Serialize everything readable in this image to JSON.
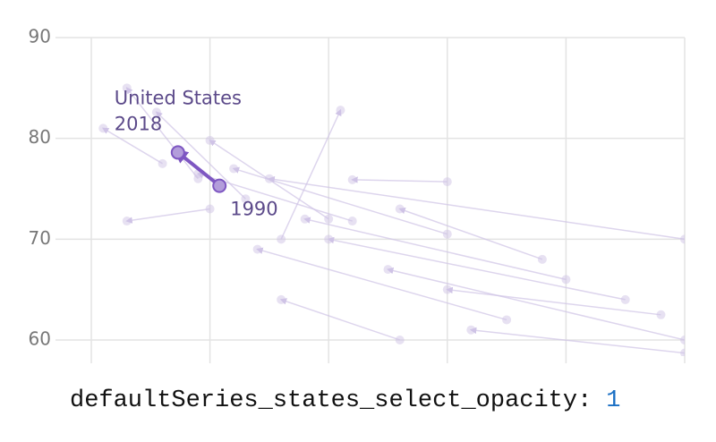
{
  "chart_data": {
    "type": "line",
    "xlim": [
      0,
      5
    ],
    "ylim": [
      58.4,
      90
    ],
    "yticks": [
      60,
      70,
      80,
      90
    ],
    "grid": true,
    "series": [
      {
        "color": "#cfc3e6",
        "x": [
          0.9,
          0.3
        ],
        "values": [
          76,
          85
        ]
      },
      {
        "color": "#cfc3e6",
        "x": [
          1.3,
          0.55
        ],
        "values": [
          74,
          82.6
        ]
      },
      {
        "color": "#cfc3e6",
        "x": [
          2.0,
          1.0
        ],
        "values": [
          72,
          79.8
        ]
      },
      {
        "color": "#cfc3e6",
        "x": [
          3.0,
          1.2
        ],
        "values": [
          70.5,
          77
        ]
      },
      {
        "color": "#cfc3e6",
        "x": [
          5.0,
          1.5
        ],
        "values": [
          70,
          76
        ]
      },
      {
        "color": "#cfc3e6",
        "x": [
          4.5,
          2.0
        ],
        "values": [
          64,
          70
        ]
      },
      {
        "color": "#cfc3e6",
        "x": [
          5.0,
          2.5
        ],
        "values": [
          60,
          67
        ]
      },
      {
        "color": "#cfc3e6",
        "x": [
          4.0,
          1.8
        ],
        "values": [
          66,
          72
        ]
      },
      {
        "color": "#cfc3e6",
        "x": [
          3.5,
          1.4
        ],
        "values": [
          62,
          69
        ]
      },
      {
        "color": "#cfc3e6",
        "x": [
          2.6,
          1.6
        ],
        "values": [
          60,
          64
        ]
      },
      {
        "color": "#cfc3e6",
        "x": [
          0.6,
          0.1
        ],
        "values": [
          77.5,
          81
        ]
      },
      {
        "color": "#cfc3e6",
        "x": [
          1.6,
          2.1
        ],
        "values": [
          70,
          82.8
        ]
      },
      {
        "color": "#cfc3e6",
        "x": [
          3.0,
          2.2
        ],
        "values": [
          75.7,
          75.9
        ]
      },
      {
        "color": "#cfc3e6",
        "x": [
          5.0,
          3.2
        ],
        "values": [
          58.7,
          61
        ]
      },
      {
        "color": "#cfc3e6",
        "x": [
          2.2,
          0.9
        ],
        "values": [
          71.8,
          76.5
        ]
      },
      {
        "color": "#cfc3e6",
        "x": [
          4.8,
          3.0
        ],
        "values": [
          62.5,
          65
        ]
      },
      {
        "color": "#cfc3e6",
        "x": [
          1.0,
          0.3
        ],
        "values": [
          73,
          71.8
        ]
      },
      {
        "color": "#cfc3e6",
        "x": [
          3.8,
          2.6
        ],
        "values": [
          68,
          73
        ]
      },
      {
        "name": "United States",
        "color": "#7e57c2",
        "highlight": true,
        "x": [
          1.08,
          0.73
        ],
        "values": [
          75.3,
          78.6
        ],
        "point_labels": [
          "1990",
          "2018"
        ]
      }
    ]
  },
  "caption": {
    "key": "defaultSeries_states_select_opacity:",
    "value": 1
  }
}
